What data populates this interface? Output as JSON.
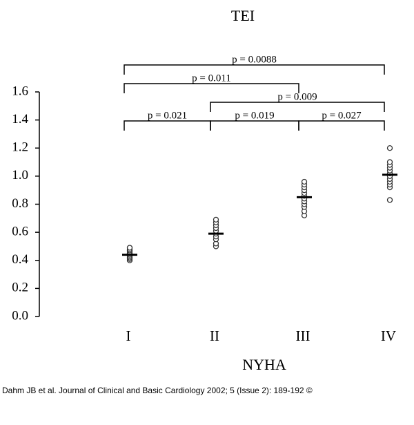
{
  "chart_data": {
    "type": "dot",
    "title": "TEI",
    "x_label": "NYHA",
    "categories": [
      "I",
      "II",
      "III",
      "IV"
    ],
    "points": [
      [
        0.4,
        0.41,
        0.42,
        0.43,
        0.44,
        0.45,
        0.46,
        0.47,
        0.48,
        0.49
      ],
      [
        0.5,
        0.52,
        0.55,
        0.57,
        0.59,
        0.61,
        0.63,
        0.65,
        0.67,
        0.69
      ],
      [
        0.72,
        0.75,
        0.78,
        0.8,
        0.82,
        0.84,
        0.86,
        0.88,
        0.9,
        0.92,
        0.94,
        0.96
      ],
      [
        0.83,
        0.92,
        0.94,
        0.96,
        0.98,
        1.0,
        1.02,
        1.04,
        1.06,
        1.08,
        1.1,
        1.2
      ]
    ],
    "means": [
      0.44,
      0.59,
      0.85,
      1.01
    ],
    "ylim": [
      0,
      1.6
    ],
    "yticks": [
      {
        "value": 0,
        "label": "0.0"
      },
      0.2,
      0.4,
      0.6,
      0.8,
      {
        "value": 1,
        "label": "1.0"
      },
      1.2,
      1.4,
      1.6
    ],
    "comparisons": [
      {
        "from": "I",
        "to": "II",
        "label": "p = 0.021"
      },
      {
        "from": "II",
        "to": "III",
        "label": "p = 0.019"
      },
      {
        "from": "III",
        "to": "IV",
        "label": "p = 0.027"
      },
      {
        "from": "II",
        "to": "IV",
        "label": "p = 0.009"
      },
      {
        "from": "I",
        "to": "III",
        "label": "p = 0.011"
      },
      {
        "from": "I",
        "to": "IV",
        "label": "p = 0.0088"
      }
    ],
    "source": "Dahm JB et al. Journal of Clinical and Basic Cardiology 2002; 5 (Issue 2): 189-192 ©"
  }
}
